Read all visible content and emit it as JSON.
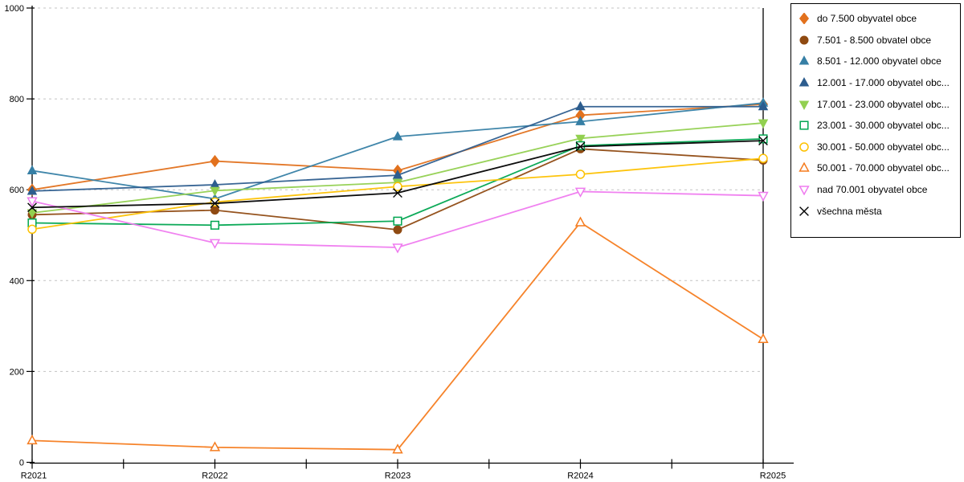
{
  "chart_data": {
    "type": "line",
    "title": "",
    "xlabel": "",
    "ylabel": "",
    "categories": [
      "R2021",
      "R2022",
      "R2023",
      "R2024",
      "R2025"
    ],
    "ylim": [
      0,
      1000
    ],
    "y_ticks": [
      0,
      200,
      400,
      600,
      800,
      1000
    ],
    "grid": "horizontal-dashed",
    "grid_color": "#c3c3c3",
    "axis_color": "#000000",
    "legend_position": "top-right",
    "series": [
      {
        "name": "do 7.500 obyvatel obce",
        "marker": "diamond",
        "filled": true,
        "color": "#e2711d",
        "values": [
          600,
          663,
          642,
          764,
          788
        ]
      },
      {
        "name": "7.501 - 8.500 obvatel obce",
        "marker": "circle",
        "filled": true,
        "color": "#8f4a12",
        "values": [
          545,
          555,
          512,
          690,
          665
        ]
      },
      {
        "name": "8.501 - 12.000 obyvatel obce",
        "marker": "triangle-up",
        "filled": true,
        "color": "#367fa5",
        "values": [
          642,
          580,
          717,
          750,
          791
        ]
      },
      {
        "name": "12.001 - 17.000 obyvatel obc...",
        "marker": "triangle-up",
        "filled": true,
        "color": "#2d5d8e",
        "values": [
          597,
          611,
          632,
          783,
          783
        ]
      },
      {
        "name": "17.001 - 23.000 obyvatel obc...",
        "marker": "triangle-down",
        "filled": true,
        "color": "#92d050",
        "values": [
          549,
          598,
          616,
          713,
          747
        ]
      },
      {
        "name": "23.001 - 30.000 obyvatel obc...",
        "marker": "square",
        "filled": false,
        "color": "#00a550",
        "values": [
          527,
          522,
          531,
          697,
          712
        ]
      },
      {
        "name": "30.001 - 50.000 obyvatel obc...",
        "marker": "circle",
        "filled": false,
        "color": "#fdc100",
        "values": [
          513,
          573,
          607,
          634,
          669
        ]
      },
      {
        "name": "50.001 - 70.000 obyvatel obc...",
        "marker": "triangle-up",
        "filled": false,
        "color": "#f57c1f",
        "values": [
          48,
          33,
          28,
          528,
          271
        ]
      },
      {
        "name": "nad 70.001 obyvatel obce",
        "marker": "triangle-down",
        "filled": false,
        "color": "#ef7bef",
        "values": [
          575,
          483,
          473,
          596,
          587
        ]
      },
      {
        "name": "všechna města",
        "marker": "x",
        "filled": false,
        "color": "#000000",
        "values": [
          561,
          570,
          593,
          695,
          708
        ]
      }
    ]
  }
}
